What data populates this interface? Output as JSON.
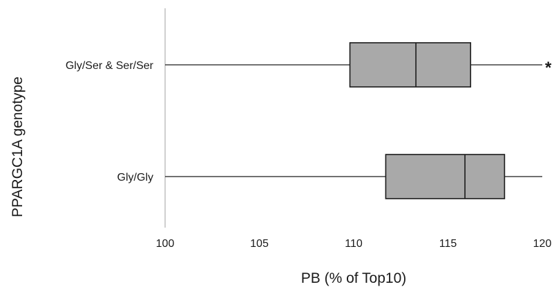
{
  "chart_data": {
    "type": "boxplot",
    "orientation": "horizontal",
    "xlabel": "PB (% of Top10)",
    "ylabel": "PPARGC1A genotype",
    "xlim": [
      100,
      120
    ],
    "xticks": [
      100,
      105,
      110,
      115,
      120
    ],
    "grid": false,
    "legend": "none",
    "box_fill": "#a9a9a9",
    "line_color": "#1a1a1a",
    "axis_color": "#bfbfbf",
    "categories": [
      "Gly/Ser & Ser/Ser",
      "Gly/Gly"
    ],
    "series": [
      {
        "category": "Gly/Ser & Ser/Ser",
        "whisker_low": 100,
        "q1": 109.8,
        "median": 113.3,
        "q3": 116.2,
        "whisker_high": 120,
        "annotation": "*"
      },
      {
        "category": "Gly/Gly",
        "whisker_low": 100,
        "q1": 111.7,
        "median": 115.9,
        "q3": 118.0,
        "whisker_high": 120,
        "annotation": ""
      }
    ]
  }
}
